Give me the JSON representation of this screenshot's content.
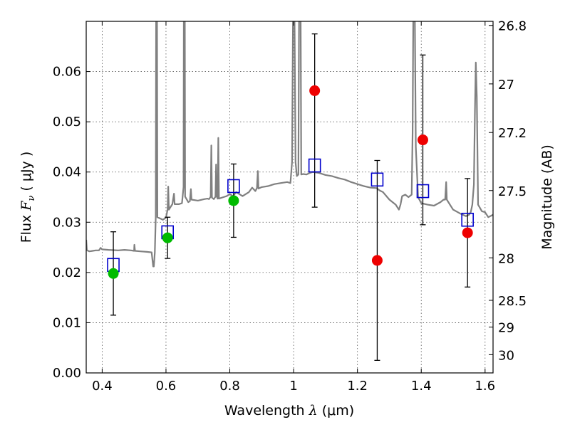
{
  "chart_data": {
    "type": "scatter",
    "title": "",
    "xlabel": {
      "prefix": "Wavelength  ",
      "sym": "λ",
      "unit": " (μm)"
    },
    "ylabel": {
      "prefix": "Flux  ",
      "sym": "F",
      "sub": "ν",
      "unit": "  ( μJy )"
    },
    "y2label": "Magnitude (AB)",
    "xlim": [
      0.35,
      1.625
    ],
    "ylim": [
      0.0,
      0.07
    ],
    "grid": true,
    "legend": "none",
    "x_ticks": [
      {
        "value": 0.4,
        "label": "0.4"
      },
      {
        "value": 0.6,
        "label": "0.6"
      },
      {
        "value": 0.8,
        "label": "0.8"
      },
      {
        "value": 1.0,
        "label": "1"
      },
      {
        "value": 1.2,
        "label": "1.2"
      },
      {
        "value": 1.4,
        "label": "1.4"
      },
      {
        "value": 1.6,
        "label": "1.6"
      }
    ],
    "y_ticks": [
      {
        "value": 0.0,
        "label": "0.00"
      },
      {
        "value": 0.01,
        "label": "0.01"
      },
      {
        "value": 0.02,
        "label": "0.02"
      },
      {
        "value": 0.03,
        "label": "0.03"
      },
      {
        "value": 0.04,
        "label": "0.04"
      },
      {
        "value": 0.05,
        "label": "0.05"
      },
      {
        "value": 0.06,
        "label": "0.06"
      }
    ],
    "mag_ticks": [
      {
        "value": 26.8,
        "label": "26.8"
      },
      {
        "value": 27.0,
        "label": "27"
      },
      {
        "value": 27.2,
        "label": "27.2"
      },
      {
        "value": 27.5,
        "label": "27.5"
      },
      {
        "value": 28.0,
        "label": "28"
      },
      {
        "value": 28.5,
        "label": "28.5"
      },
      {
        "value": 29.0,
        "label": "29"
      },
      {
        "value": 30.0,
        "label": "30"
      }
    ],
    "colors": {
      "spectrum": "#808080",
      "detection": "#00bb00",
      "non_detection": "#ee0000",
      "model": "#0000cc",
      "errorbar": "#000000",
      "grid": "#555555"
    },
    "series": [
      {
        "role": "spectrum",
        "points": [
          [
            0.35,
            0.0265
          ],
          [
            0.352,
            0.0245
          ],
          [
            0.356,
            0.0243
          ],
          [
            0.36,
            0.0242
          ],
          [
            0.37,
            0.0243
          ],
          [
            0.38,
            0.0244
          ],
          [
            0.39,
            0.0244
          ],
          [
            0.395,
            0.0249
          ],
          [
            0.4,
            0.0246
          ],
          [
            0.42,
            0.0245
          ],
          [
            0.45,
            0.0244
          ],
          [
            0.47,
            0.0245
          ],
          [
            0.49,
            0.0244
          ],
          [
            0.5,
            0.0243
          ],
          [
            0.501,
            0.0255
          ],
          [
            0.503,
            0.0243
          ],
          [
            0.52,
            0.0242
          ],
          [
            0.54,
            0.0241
          ],
          [
            0.555,
            0.024
          ],
          [
            0.56,
            0.0212
          ],
          [
            0.562,
            0.0212
          ],
          [
            0.565,
            0.024
          ],
          [
            0.568,
            0.031
          ],
          [
            0.569,
            0.07
          ],
          [
            0.572,
            0.07
          ],
          [
            0.573,
            0.031
          ],
          [
            0.58,
            0.0308
          ],
          [
            0.59,
            0.0305
          ],
          [
            0.6,
            0.0309
          ],
          [
            0.605,
            0.0325
          ],
          [
            0.607,
            0.0371
          ],
          [
            0.609,
            0.0325
          ],
          [
            0.62,
            0.0336
          ],
          [
            0.625,
            0.0357
          ],
          [
            0.627,
            0.0336
          ],
          [
            0.64,
            0.0336
          ],
          [
            0.65,
            0.0338
          ],
          [
            0.655,
            0.037
          ],
          [
            0.656,
            0.07
          ],
          [
            0.659,
            0.07
          ],
          [
            0.66,
            0.0351
          ],
          [
            0.67,
            0.034
          ],
          [
            0.675,
            0.0342
          ],
          [
            0.678,
            0.0366
          ],
          [
            0.68,
            0.0345
          ],
          [
            0.7,
            0.0343
          ],
          [
            0.72,
            0.0346
          ],
          [
            0.73,
            0.0347
          ],
          [
            0.735,
            0.0346
          ],
          [
            0.74,
            0.0351
          ],
          [
            0.742,
            0.0453
          ],
          [
            0.744,
            0.0349
          ],
          [
            0.75,
            0.0346
          ],
          [
            0.755,
            0.0351
          ],
          [
            0.757,
            0.0415
          ],
          [
            0.759,
            0.0351
          ],
          [
            0.762,
            0.0347
          ],
          [
            0.764,
            0.0468
          ],
          [
            0.766,
            0.0347
          ],
          [
            0.78,
            0.035
          ],
          [
            0.79,
            0.0352
          ],
          [
            0.8,
            0.0356
          ],
          [
            0.81,
            0.0352
          ],
          [
            0.82,
            0.036
          ],
          [
            0.84,
            0.0352
          ],
          [
            0.86,
            0.036
          ],
          [
            0.87,
            0.0369
          ],
          [
            0.88,
            0.0362
          ],
          [
            0.885,
            0.0368
          ],
          [
            0.888,
            0.0402
          ],
          [
            0.89,
            0.0367
          ],
          [
            0.9,
            0.037
          ],
          [
            0.92,
            0.0372
          ],
          [
            0.94,
            0.0376
          ],
          [
            0.96,
            0.0378
          ],
          [
            0.98,
            0.038
          ],
          [
            0.99,
            0.0378
          ],
          [
            0.995,
            0.042
          ],
          [
            0.998,
            0.07
          ],
          [
            1.003,
            0.07
          ],
          [
            1.006,
            0.042
          ],
          [
            1.01,
            0.0392
          ],
          [
            1.015,
            0.0395
          ],
          [
            1.017,
            0.07
          ],
          [
            1.022,
            0.07
          ],
          [
            1.024,
            0.0395
          ],
          [
            1.03,
            0.0396
          ],
          [
            1.04,
            0.0395
          ],
          [
            1.05,
            0.0398
          ],
          [
            1.06,
            0.04
          ],
          [
            1.08,
            0.0398
          ],
          [
            1.1,
            0.0394
          ],
          [
            1.12,
            0.0392
          ],
          [
            1.14,
            0.0388
          ],
          [
            1.16,
            0.0385
          ],
          [
            1.18,
            0.038
          ],
          [
            1.2,
            0.0376
          ],
          [
            1.22,
            0.0372
          ],
          [
            1.24,
            0.0369
          ],
          [
            1.26,
            0.0368
          ],
          [
            1.27,
            0.0363
          ],
          [
            1.28,
            0.036
          ],
          [
            1.3,
            0.0345
          ],
          [
            1.32,
            0.0335
          ],
          [
            1.33,
            0.0325
          ],
          [
            1.335,
            0.0335
          ],
          [
            1.34,
            0.0352
          ],
          [
            1.35,
            0.0355
          ],
          [
            1.36,
            0.035
          ],
          [
            1.37,
            0.0355
          ],
          [
            1.373,
            0.048
          ],
          [
            1.375,
            0.07
          ],
          [
            1.38,
            0.07
          ],
          [
            1.383,
            0.045
          ],
          [
            1.39,
            0.035
          ],
          [
            1.4,
            0.0338
          ],
          [
            1.42,
            0.0335
          ],
          [
            1.44,
            0.0333
          ],
          [
            1.46,
            0.034
          ],
          [
            1.47,
            0.0345
          ],
          [
            1.475,
            0.0345
          ],
          [
            1.478,
            0.038
          ],
          [
            1.48,
            0.0345
          ],
          [
            1.49,
            0.0335
          ],
          [
            1.5,
            0.0325
          ],
          [
            1.52,
            0.0318
          ],
          [
            1.54,
            0.0312
          ],
          [
            1.55,
            0.0315
          ],
          [
            1.555,
            0.032
          ],
          [
            1.56,
            0.0335
          ],
          [
            1.565,
            0.0375
          ],
          [
            1.568,
            0.0515
          ],
          [
            1.571,
            0.0618
          ],
          [
            1.574,
            0.055
          ],
          [
            1.578,
            0.0335
          ],
          [
            1.59,
            0.0322
          ],
          [
            1.6,
            0.032
          ],
          [
            1.61,
            0.031
          ],
          [
            1.625,
            0.0315
          ]
        ]
      },
      {
        "role": "model",
        "points": [
          [
            0.435,
            0.0215
          ],
          [
            0.605,
            0.028
          ],
          [
            0.812,
            0.0372
          ],
          [
            1.066,
            0.0413
          ],
          [
            1.262,
            0.0385
          ],
          [
            1.405,
            0.0362
          ],
          [
            1.545,
            0.0305
          ]
        ]
      },
      {
        "role": "detection",
        "points": [
          {
            "x": 0.435,
            "y": 0.0198,
            "err": 0.0083
          },
          {
            "x": 0.605,
            "y": 0.0269,
            "err": 0.0041
          },
          {
            "x": 0.812,
            "y": 0.0343,
            "err": 0.0073
          }
        ]
      },
      {
        "role": "non_detection",
        "points": [
          {
            "x": 1.066,
            "y": 0.0562,
            "err_lo": 0.0232,
            "err_hi": 0.0113
          },
          {
            "x": 1.262,
            "y": 0.0224,
            "err": 0.0199
          },
          {
            "x": 1.405,
            "y": 0.0464,
            "err": 0.0169
          },
          {
            "x": 1.545,
            "y": 0.0279,
            "err": 0.0108
          }
        ]
      }
    ]
  }
}
